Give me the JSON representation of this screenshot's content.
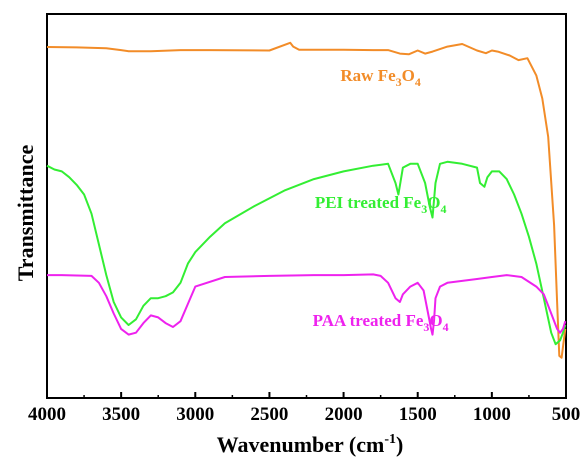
{
  "chart_data": {
    "type": "line",
    "xlabel": "Wavenumber (cm",
    "xlabel_sup": "-1",
    "xlabel_end": ")",
    "ylabel": "Transmittance",
    "xlim": [
      4000,
      500
    ],
    "x_reversed": true,
    "y_ticks_shown": false,
    "ylim": [
      0,
      1
    ],
    "x_ticks": [
      4000,
      3500,
      3000,
      2500,
      2000,
      1500,
      1000,
      500
    ],
    "grid": false,
    "legend": "none",
    "series": [
      {
        "name": "Raw Fe3O4",
        "label_parts": [
          "Raw Fe",
          "3",
          "O",
          "4"
        ],
        "color": "#f28c28",
        "x": [
          4000,
          3800,
          3600,
          3500,
          3450,
          3300,
          3100,
          2900,
          2500,
          2360,
          2340,
          2300,
          2000,
          1800,
          1700,
          1620,
          1560,
          1500,
          1450,
          1400,
          1300,
          1200,
          1100,
          1040,
          1000,
          960,
          880,
          820,
          760,
          700,
          660,
          620,
          580,
          560,
          545,
          530,
          515,
          505
        ],
        "values": [
          0.914,
          0.913,
          0.911,
          0.906,
          0.903,
          0.903,
          0.906,
          0.906,
          0.905,
          0.925,
          0.915,
          0.907,
          0.907,
          0.906,
          0.906,
          0.897,
          0.895,
          0.905,
          0.897,
          0.902,
          0.915,
          0.922,
          0.905,
          0.898,
          0.905,
          0.902,
          0.892,
          0.88,
          0.885,
          0.84,
          0.78,
          0.68,
          0.45,
          0.25,
          0.11,
          0.105,
          0.15,
          0.18
        ]
      },
      {
        "name": "PEI treated Fe3O4",
        "label_parts": [
          "PEI treated Fe",
          "3",
          "O",
          "4"
        ],
        "color": "#33ee33",
        "x": [
          4000,
          3950,
          3900,
          3850,
          3800,
          3750,
          3700,
          3650,
          3600,
          3550,
          3500,
          3450,
          3400,
          3350,
          3300,
          3250,
          3200,
          3150,
          3100,
          3050,
          3000,
          2900,
          2800,
          2600,
          2400,
          2200,
          2000,
          1800,
          1700,
          1650,
          1630,
          1600,
          1550,
          1500,
          1450,
          1420,
          1400,
          1380,
          1350,
          1300,
          1200,
          1100,
          1080,
          1050,
          1030,
          1000,
          950,
          900,
          850,
          800,
          750,
          700,
          650,
          600,
          570,
          540,
          520,
          505
        ],
        "values": [
          0.605,
          0.595,
          0.59,
          0.575,
          0.555,
          0.53,
          0.48,
          0.4,
          0.32,
          0.25,
          0.21,
          0.19,
          0.205,
          0.24,
          0.26,
          0.26,
          0.265,
          0.275,
          0.3,
          0.35,
          0.38,
          0.42,
          0.455,
          0.5,
          0.54,
          0.57,
          0.59,
          0.605,
          0.61,
          0.56,
          0.53,
          0.6,
          0.61,
          0.61,
          0.56,
          0.5,
          0.47,
          0.56,
          0.61,
          0.615,
          0.61,
          0.6,
          0.56,
          0.55,
          0.575,
          0.59,
          0.59,
          0.57,
          0.53,
          0.48,
          0.42,
          0.35,
          0.26,
          0.17,
          0.14,
          0.15,
          0.17,
          0.19
        ]
      },
      {
        "name": "PAA treated Fe3O4",
        "label_parts": [
          "PAA treated Fe",
          "3",
          "O",
          "4"
        ],
        "color": "#ee22ee",
        "x": [
          4000,
          3900,
          3800,
          3700,
          3650,
          3600,
          3550,
          3500,
          3450,
          3400,
          3350,
          3300,
          3250,
          3200,
          3150,
          3100,
          3050,
          3000,
          2800,
          2500,
          2200,
          2000,
          1800,
          1750,
          1700,
          1650,
          1620,
          1600,
          1550,
          1500,
          1460,
          1430,
          1410,
          1400,
          1390,
          1380,
          1350,
          1300,
          1200,
          1100,
          1000,
          900,
          800,
          700,
          650,
          600,
          560,
          540,
          520,
          505
        ],
        "values": [
          0.32,
          0.32,
          0.319,
          0.318,
          0.3,
          0.265,
          0.22,
          0.18,
          0.165,
          0.17,
          0.195,
          0.215,
          0.21,
          0.195,
          0.185,
          0.2,
          0.245,
          0.29,
          0.315,
          0.318,
          0.32,
          0.32,
          0.322,
          0.318,
          0.3,
          0.26,
          0.25,
          0.27,
          0.29,
          0.3,
          0.28,
          0.22,
          0.18,
          0.165,
          0.2,
          0.26,
          0.29,
          0.3,
          0.305,
          0.31,
          0.315,
          0.32,
          0.315,
          0.29,
          0.27,
          0.22,
          0.18,
          0.17,
          0.18,
          0.2
        ]
      }
    ]
  }
}
